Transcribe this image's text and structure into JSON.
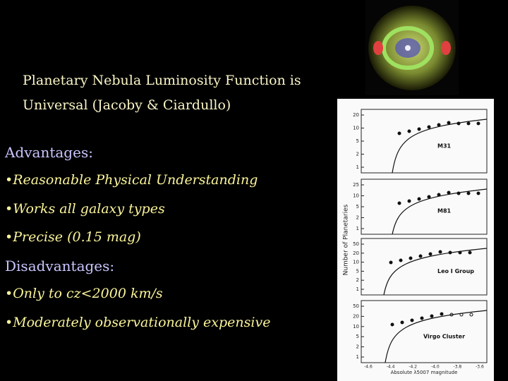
{
  "slide": {
    "title": [
      "Planetary Nebula Luminosity Function is",
      "Universal (Jacoby & Ciardullo)"
    ],
    "advantages": {
      "heading": "Advantages:",
      "items": [
        "•Reasonable Physical Understanding",
        "•Works all galaxy types",
        "•Precise (0.15 mag)"
      ]
    },
    "disadvantages": {
      "heading": "Disadvantages:",
      "items": [
        "•Only to cz<2000 km/s",
        "•Moderately observationally expensive"
      ]
    }
  },
  "figure": {
    "y_label": "Number of Planetaries",
    "x_label": "Absolute λ5007 magnitude",
    "x_ticks": [
      "-4.6",
      "-4.4",
      "-4.2",
      "-4.0",
      "-3.8",
      "-3.6"
    ],
    "panels": [
      {
        "label": "M31",
        "y_ticks": [
          "20",
          "10",
          "5",
          "2",
          "1"
        ]
      },
      {
        "label": "M81",
        "y_ticks": [
          "25",
          "10",
          "5",
          "2",
          "1"
        ]
      },
      {
        "label": "Leo I Group",
        "y_ticks": [
          "50",
          "20",
          "10",
          "5",
          "2",
          "1"
        ]
      },
      {
        "label": "Virgo Cluster",
        "y_ticks": [
          "50",
          "20",
          "10",
          "5",
          "2",
          "1"
        ]
      }
    ]
  }
}
